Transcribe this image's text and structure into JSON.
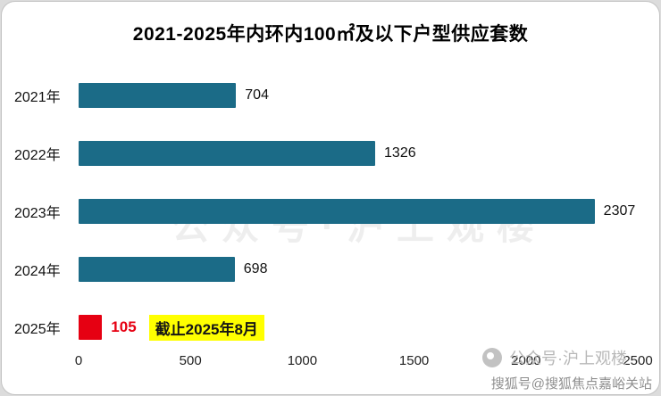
{
  "title": "2021-2025年内环内100㎡及以下户型供应套数",
  "chart_data": {
    "type": "bar",
    "orientation": "horizontal",
    "title": "2021-2025年内环内100㎡及以下户型供应套数",
    "categories": [
      "2021年",
      "2022年",
      "2023年",
      "2024年",
      "2025年"
    ],
    "values": [
      704,
      1326,
      2307,
      698,
      105
    ],
    "bar_colors": [
      "#1b6b87",
      "#1b6b87",
      "#1b6b87",
      "#1b6b87",
      "#e60012"
    ],
    "value_colors": [
      "#111111",
      "#111111",
      "#111111",
      "#111111",
      "#e60012"
    ],
    "value_bold": [
      false,
      false,
      false,
      false,
      true
    ],
    "annotations": [
      {
        "category": "2025年",
        "text": "截止2025年8月",
        "bg": "#ffff00"
      }
    ],
    "xlim": [
      0,
      2500
    ],
    "x_ticks": [
      0,
      500,
      1000,
      1500,
      2000,
      2500
    ],
    "grid": false,
    "legend": "none"
  },
  "colors": {
    "bar": "#1b6b87",
    "highlight_bar": "#e60012",
    "annotation_bg": "#ffff00"
  },
  "watermarks": {
    "faint_center": "公众号·沪上观楼",
    "account_label": "公众号·沪上观楼",
    "bottom_credit": "搜狐号@搜狐焦点嘉峪关站"
  }
}
